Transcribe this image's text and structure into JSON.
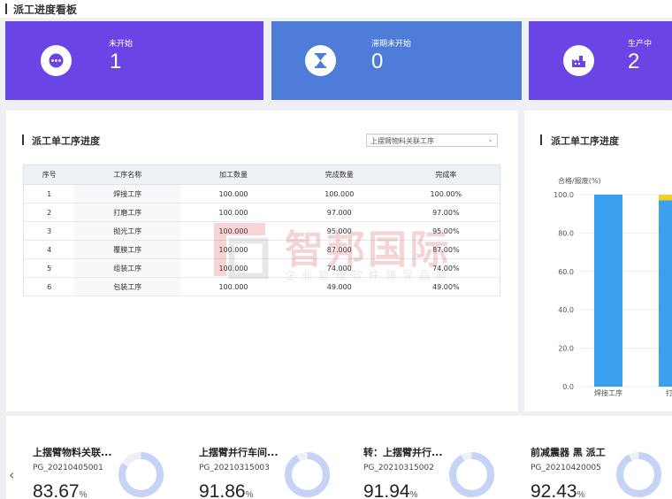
{
  "header": {
    "title": "派工进度看板"
  },
  "stats": [
    {
      "label": "未开始",
      "value": "1",
      "icon": "more-dots-icon",
      "color": "#6a44e4"
    },
    {
      "label": "滞期未开始",
      "value": "0",
      "icon": "hourglass-icon",
      "color": "#4f7bd9"
    },
    {
      "label": "生产中",
      "value": "2",
      "icon": "factory-icon",
      "color": "#6a44e4"
    }
  ],
  "process_table": {
    "title": "派工单工序进度",
    "select_value": "上摆臂物料关联工序",
    "columns": [
      "序号",
      "工序名称",
      "加工数量",
      "完成数量",
      "完成率"
    ],
    "rows": [
      [
        "1",
        "焊接工序",
        "100.000",
        "100.000",
        "100.00%"
      ],
      [
        "2",
        "打磨工序",
        "100.000",
        "97.000",
        "97.00%"
      ],
      [
        "3",
        "抛光工序",
        "100.000",
        "95.000",
        "95.00%"
      ],
      [
        "4",
        "覆膜工序",
        "100.000",
        "87.000",
        "87.00%"
      ],
      [
        "5",
        "组装工序",
        "100.000",
        "74.000",
        "74.00%"
      ],
      [
        "6",
        "包装工序",
        "100.000",
        "49.000",
        "49.00%"
      ]
    ]
  },
  "watermark": {
    "name": "智邦国际",
    "slogan": "企业管理软件领导品牌"
  },
  "chart_panel": {
    "title": "派工单工序进度",
    "chart_data": {
      "type": "bar",
      "ylabel": "合格/报废(%)",
      "ylim": [
        0,
        100
      ],
      "yticks": [
        "0.0",
        "20.0",
        "40.0",
        "60.0",
        "80.0",
        "100.0"
      ],
      "categories": [
        "焊接工序",
        "打磨"
      ],
      "series": [
        {
          "values": [
            100,
            97
          ],
          "color": "#3ba0f0"
        },
        {
          "values": [
            0,
            3
          ],
          "color": "#f0d020"
        }
      ]
    }
  },
  "cards": [
    {
      "title": "上摆臂物料关联...",
      "code": "PG_20210405001",
      "percent": "83.67",
      "unit": "%",
      "progress": 0.8367
    },
    {
      "title": "上摆臂并行车间...",
      "code": "PG_20210315003",
      "percent": "91.86",
      "unit": "%",
      "progress": 0.9186
    },
    {
      "title": "转：上摆臂并行...",
      "code": "PG_20210315002",
      "percent": "91.94",
      "unit": "%",
      "progress": 0.9194
    },
    {
      "title": "前减震器 黑 派工",
      "code": "PG_20210420005",
      "percent": "92.43",
      "unit": "%",
      "progress": 0.9243
    }
  ],
  "carousel": {
    "prev_icon": "chevron-left-icon",
    "prev_glyph": "‹"
  },
  "colors": {
    "donut_fill": "#c5d3f6",
    "donut_track": "#edf0f6"
  }
}
